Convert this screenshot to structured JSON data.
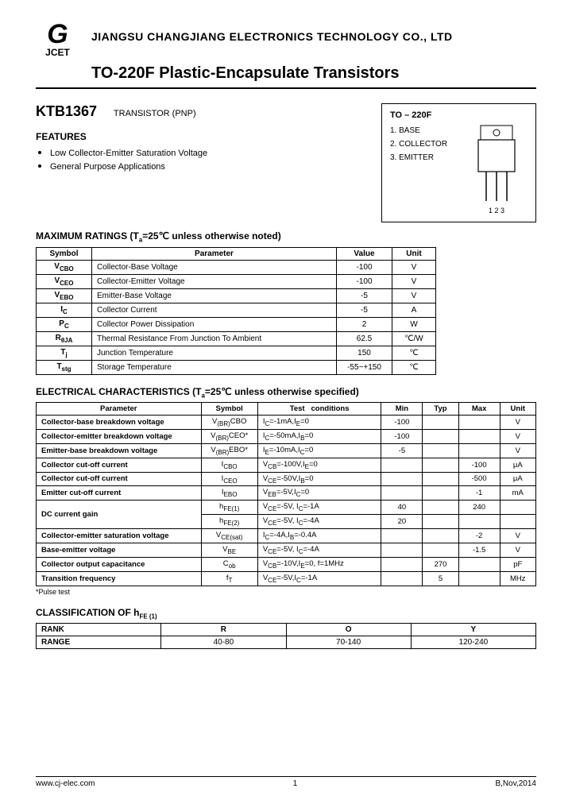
{
  "header": {
    "logo_glyph": "G",
    "logo_text": "JCET",
    "company": "JIANGSU CHANGJIANG ELECTRONICS TECHNOLOGY CO., LTD",
    "product_line": "TO-220F Plastic-Encapsulate Transistors"
  },
  "part": {
    "number": "KTB1367",
    "type": "TRANSISTOR (PNP)"
  },
  "features": {
    "title": "FEATURES",
    "items": [
      "Low Collector-Emitter Saturation Voltage",
      "General Purpose Applications"
    ]
  },
  "package": {
    "name": "TO – 220F",
    "pins": [
      "1. BASE",
      "2. COLLECTOR",
      "3. EMITTER"
    ],
    "pin_numbers": "1  2  3"
  },
  "max_ratings": {
    "title": "MAXIMUM RATINGS (T",
    "title_sub": "a",
    "title_rest": "=25℃ unless otherwise noted)",
    "headers": [
      "Symbol",
      "Parameter",
      "Value",
      "Unit"
    ],
    "rows": [
      {
        "sym": "V",
        "sub": "CBO",
        "param": "Collector-Base Voltage",
        "val": "-100",
        "unit": "V"
      },
      {
        "sym": "V",
        "sub": "CEO",
        "param": "Collector-Emitter Voltage",
        "val": "-100",
        "unit": "V"
      },
      {
        "sym": "V",
        "sub": "EBO",
        "param": "Emitter-Base Voltage",
        "val": "-5",
        "unit": "V"
      },
      {
        "sym": "I",
        "sub": "C",
        "param": "Collector Current",
        "val": "-5",
        "unit": "A"
      },
      {
        "sym": "P",
        "sub": "C",
        "param": "Collector Power Dissipation",
        "val": "2",
        "unit": "W"
      },
      {
        "sym": "R",
        "sub": "θJA",
        "param": "Thermal Resistance From Junction To Ambient",
        "val": "62.5",
        "unit": "℃/W"
      },
      {
        "sym": "T",
        "sub": "j",
        "param": "Junction Temperature",
        "val": "150",
        "unit": "℃"
      },
      {
        "sym": "T",
        "sub": "stg",
        "param": "Storage Temperature",
        "val": "-55~+150",
        "unit": "℃"
      }
    ]
  },
  "electrical": {
    "title": "ELECTRICAL CHARACTERISTICS (T",
    "title_sub": "a",
    "title_rest": "=25℃ unless otherwise specified)",
    "headers": [
      "Parameter",
      "Symbol",
      "Test conditions",
      "Min",
      "Typ",
      "Max",
      "Unit"
    ],
    "rows": [
      {
        "param": "Collector-base breakdown voltage",
        "sym": "V_(BR)CBO",
        "cond": "I_C=-1mA,I_E=0",
        "min": "-100",
        "typ": "",
        "max": "",
        "unit": "V",
        "bold": true
      },
      {
        "param": "Collector-emitter breakdown voltage",
        "sym": "V_(BR)CEO*",
        "cond": "I_C=-50mA,I_B=0",
        "min": "-100",
        "typ": "",
        "max": "",
        "unit": "V",
        "bold": true
      },
      {
        "param": "Emitter-base breakdown voltage",
        "sym": "V_(BR)EBO*",
        "cond": "I_E=-10mA,I_C=0",
        "min": "-5",
        "typ": "",
        "max": "",
        "unit": "V",
        "bold": true
      },
      {
        "param": "Collector cut-off current",
        "sym": "I_CBO",
        "cond": "V_CB=-100V,I_E=0",
        "min": "",
        "typ": "",
        "max": "-100",
        "unit": "μA",
        "bold": true
      },
      {
        "param": "Collector cut-off current",
        "sym": "I_CEO",
        "cond": "V_CE=-50V,I_B=0",
        "min": "",
        "typ": "",
        "max": "-500",
        "unit": "μA",
        "bold": true
      },
      {
        "param": "Emitter cut-off current",
        "sym": "I_EBO",
        "cond": "V_EB=-5V,I_C=0",
        "min": "",
        "typ": "",
        "max": "-1",
        "unit": "mA",
        "bold": true
      }
    ],
    "dc_gain": {
      "param": "DC current gain",
      "r1": {
        "sym": "h_FE(1)",
        "cond": "V_CE=-5V, I_C=-1A",
        "min": "40",
        "typ": "",
        "max": "240",
        "unit": ""
      },
      "r2": {
        "sym": "h_FE(2)",
        "cond": "V_CE=-5V, I_C=-4A",
        "min": "20",
        "typ": "",
        "max": "",
        "unit": ""
      }
    },
    "rows2": [
      {
        "param": "Collector-emitter saturation voltage",
        "sym": "V_CE(sat)",
        "cond": "I_C=-4A,I_B=-0.4A",
        "min": "",
        "typ": "",
        "max": "-2",
        "unit": "V",
        "bold": true
      },
      {
        "param": "Base-emitter voltage",
        "sym": "V_BE",
        "cond": "V_CE=-5V, I_C=-4A",
        "min": "",
        "typ": "",
        "max": "-1.5",
        "unit": "V",
        "bold": true
      },
      {
        "param": "Collector output capacitance",
        "sym": "C_ob",
        "cond": "V_CB=-10V,I_E=0, f=1MHz",
        "min": "",
        "typ": "270",
        "max": "",
        "unit": "pF",
        "bold": true
      },
      {
        "param": "Transition frequency",
        "sym": "f_T",
        "cond": "V_CE=-5V,I_C=-1A",
        "min": "",
        "typ": "5",
        "max": "",
        "unit": "MHz",
        "bold": true
      }
    ],
    "footnote": "*Pulse test"
  },
  "classification": {
    "title": "CLASSIFICATION OF h",
    "title_sub": "FE (1)",
    "headers": [
      "RANK",
      "R",
      "O",
      "Y"
    ],
    "row": [
      "RANGE",
      "40-80",
      "70-140",
      "120-240"
    ]
  },
  "footer": {
    "url": "www.cj-elec.com",
    "page": "1",
    "rev": "B,Nov,2014"
  },
  "colors": {
    "border": "#000000",
    "text": "#000000",
    "bg": "#ffffff"
  }
}
